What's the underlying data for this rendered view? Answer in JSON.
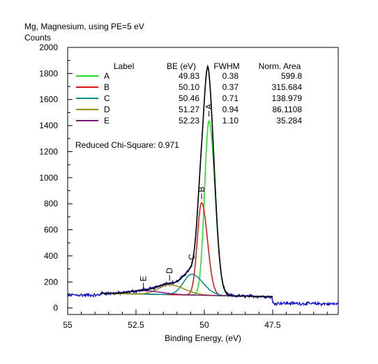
{
  "chart_data": {
    "type": "line",
    "title": "Mg, Magnesium, using PE=5 eV",
    "ylabel": "Counts",
    "xlabel": "Binding Energy, (eV)",
    "xlim": [
      55,
      45.1
    ],
    "ylim": [
      -50,
      2000
    ],
    "x_reversed": true,
    "xticks": [
      55,
      52.5,
      50,
      47.5
    ],
    "xtick_labels": [
      "55",
      "52.5",
      "50",
      "47.5"
    ],
    "yticks": [
      0,
      200,
      400,
      600,
      800,
      1000,
      1200,
      1400,
      1600,
      1800,
      2000
    ],
    "ytick_labels": [
      "0",
      "200",
      "400",
      "600",
      "800",
      "1000",
      "1200",
      "1400",
      "1600",
      "1800",
      "2000"
    ],
    "legend": {
      "headers": [
        "Label",
        "BE (eV)",
        "FWHM",
        "Norm. Area"
      ],
      "rows": [
        {
          "label": "A",
          "be": "49.83",
          "fwhm": "0.38",
          "area": "599.8",
          "color": "#22dd22"
        },
        {
          "label": "B",
          "be": "50.10",
          "fwhm": "0.37",
          "area": "315.684",
          "color": "#dd1111"
        },
        {
          "label": "C",
          "be": "50.46",
          "fwhm": "0.71",
          "area": "138.979",
          "color": "#008b8b"
        },
        {
          "label": "D",
          "be": "51.27",
          "fwhm": "0.94",
          "area": "86.1108",
          "color": "#9a8a10"
        },
        {
          "label": "E",
          "be": "52.23",
          "fwhm": "1.10",
          "area": "35.284",
          "color": "#7a1a7a"
        }
      ]
    },
    "annotation": "Reduced Chi-Square: 0.971",
    "background": {
      "color": "#8b6b3b",
      "level": 95,
      "slope_per_eV": 7,
      "fit_range": [
        53.8,
        47.5
      ]
    },
    "envelope": {
      "color": "#000000",
      "peak_value": 1640
    },
    "raw_data": {
      "color": "#0000cc",
      "baseline_high_be": 100,
      "baseline_low_be": 30
    },
    "series": [
      {
        "name": "A",
        "center": 49.83,
        "fwhm": 0.38,
        "height": 1340,
        "color": "#22dd22",
        "marker_value": 1470
      },
      {
        "name": "B",
        "center": 50.1,
        "fwhm": 0.37,
        "height": 710,
        "color": "#dd1111",
        "marker_value": 835
      },
      {
        "name": "C",
        "center": 50.46,
        "fwhm": 0.71,
        "height": 160,
        "color": "#008b8b",
        "marker_value": 315
      },
      {
        "name": "D",
        "center": 51.27,
        "fwhm": 0.94,
        "height": 75,
        "color": "#9a8a10",
        "marker_value": 210
      },
      {
        "name": "E",
        "center": 52.23,
        "fwhm": 1.1,
        "height": 27,
        "color": "#7a1a7a",
        "marker_value": 150
      }
    ]
  }
}
